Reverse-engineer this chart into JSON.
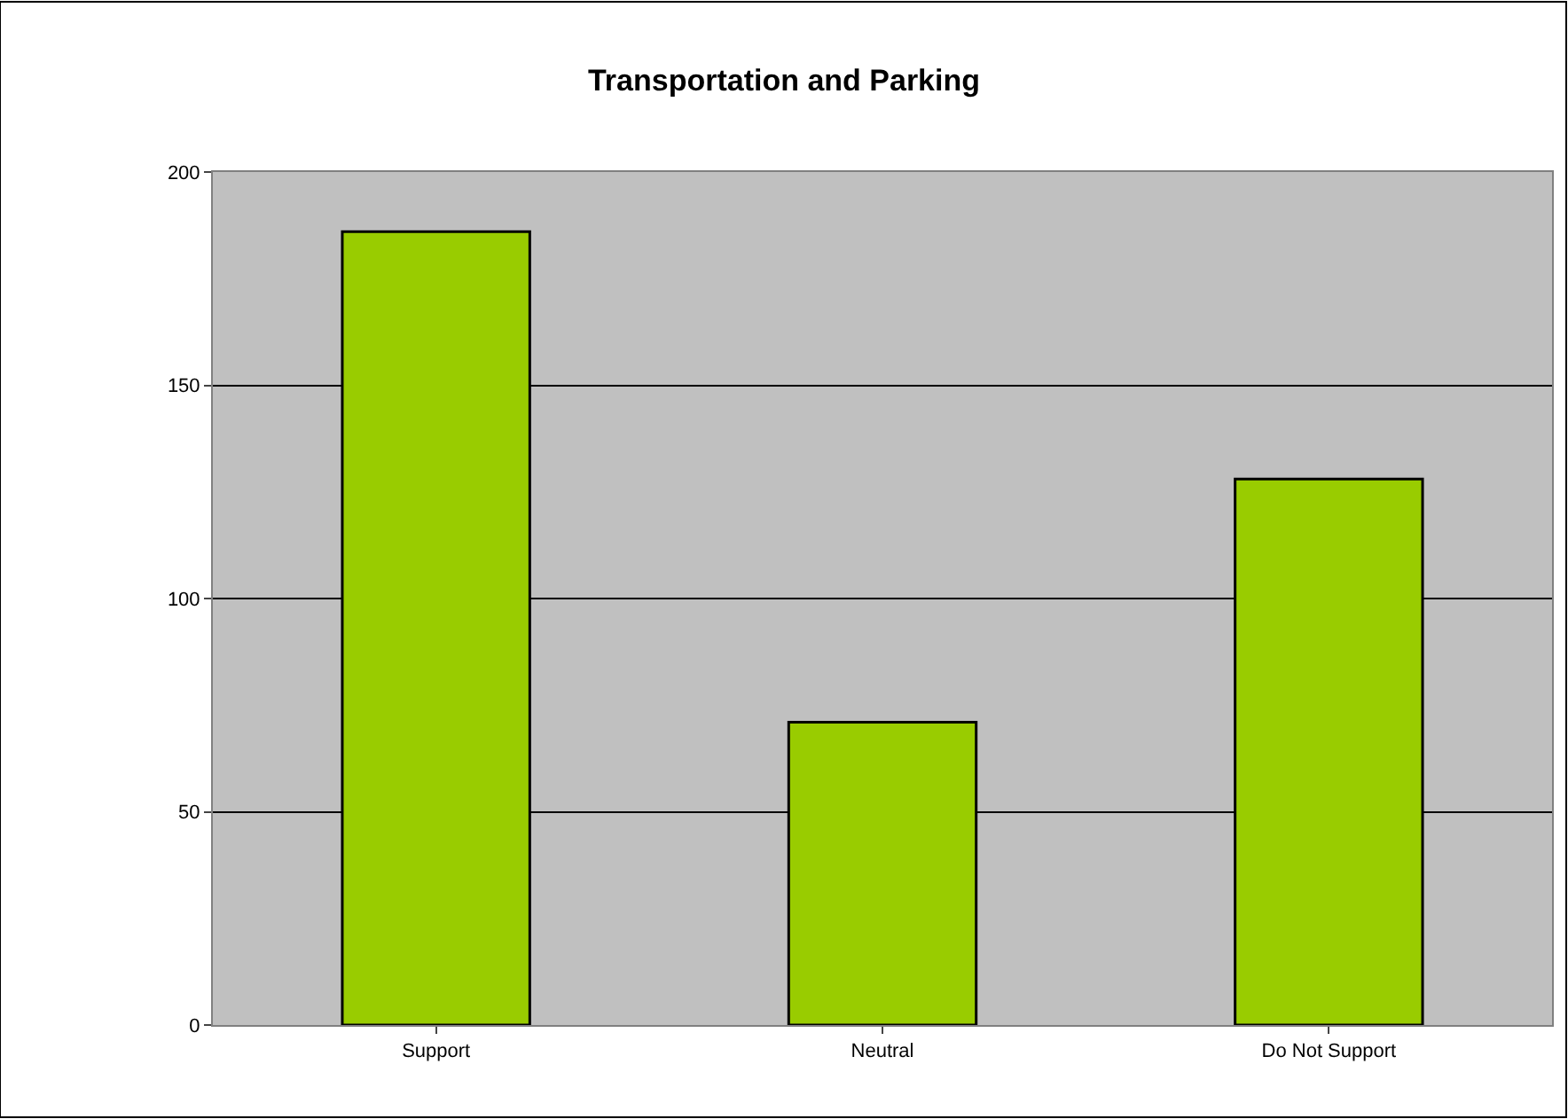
{
  "chart_data": {
    "type": "bar",
    "title": "Transportation and Parking",
    "categories": [
      "Support",
      "Neutral",
      "Do Not Support"
    ],
    "values": [
      186,
      71,
      128
    ],
    "color": "#99cc00",
    "ylim": [
      0,
      200
    ],
    "yticks": [
      0,
      50,
      100,
      150,
      200
    ],
    "grid": "y",
    "legend": false
  }
}
